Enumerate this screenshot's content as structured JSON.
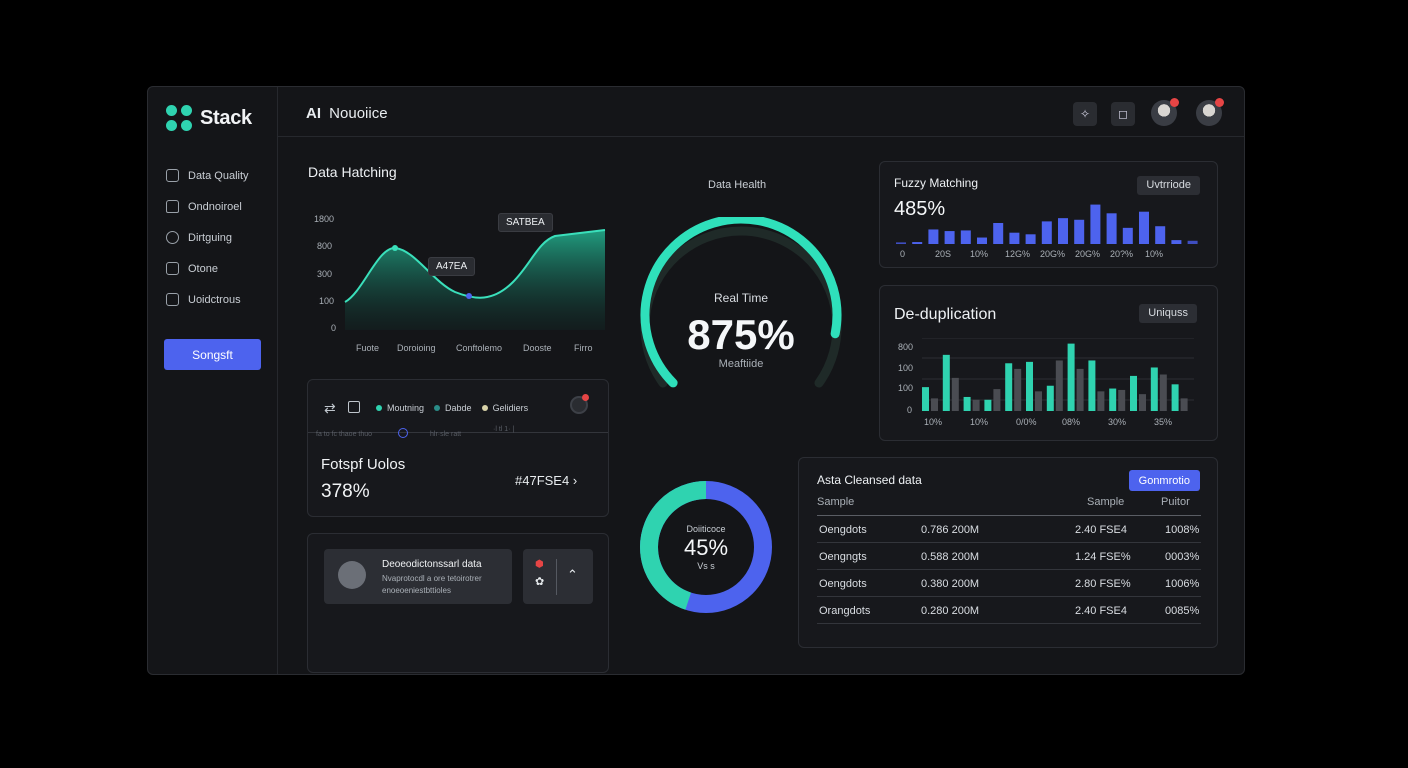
{
  "app": {
    "name": "Stack"
  },
  "header": {
    "title_strong": "AI",
    "title_rest": "Nouoiice"
  },
  "sidebar": {
    "items": [
      {
        "label": "Data Quality",
        "icon": "data-quality-icon"
      },
      {
        "label": "Ondnoiroel",
        "icon": "home-icon"
      },
      {
        "label": "Dirtguing",
        "icon": "chat-icon"
      },
      {
        "label": "Otone",
        "icon": "grid-icon"
      },
      {
        "label": "Uoidctrous",
        "icon": "folder-icon"
      }
    ],
    "cta_label": "Songsft"
  },
  "matching": {
    "title": "Data Hatching",
    "y_ticks": [
      "1800",
      "800",
      "300",
      "100",
      "0"
    ],
    "x_ticks": [
      "Fuote",
      "Doroioing",
      "Conftolemo",
      "Dooste",
      "Firro"
    ],
    "tooltip_a": "SATBEA",
    "tooltip_b": "A47EA",
    "chart_data": {
      "type": "area",
      "x": [
        "Fuote",
        "Doroioing",
        "Conftolemo",
        "Dooste",
        "Firro"
      ],
      "series": [
        {
          "values": [
            120,
            950,
            350,
            1400,
            1600
          ]
        }
      ]
    }
  },
  "legend_panel": {
    "legend": [
      "Moutning",
      "Dabde",
      "Gelidiers"
    ],
    "legend_colors": [
      "#2fd3b0",
      "#2a8c88",
      "#d8d2a8"
    ],
    "ghost_text": [
      "fa to fc thaoe thuo",
      "hlr·sle ratt",
      "·l tl 1· |"
    ],
    "stat_title": "Fotspf Uolos",
    "stat_value": "378%",
    "stat_code": "#47FSE4"
  },
  "notice": {
    "title": "Deoeodictonssarl data",
    "line1": "Nvaprotocdl a ore tetoirotrer",
    "line2": "enoeoeniestbttioles"
  },
  "health": {
    "label": "Data Health",
    "sub": "Real Time",
    "value": "875%",
    "caption": "Meaftiide",
    "fill": 0.875
  },
  "donut": {
    "caption": "Doiiticoce",
    "value": "45%",
    "sub": "Vs s",
    "fill": 0.45
  },
  "fuzzy": {
    "title": "Fuzzy Matching",
    "badge": "Uvtrriode",
    "value": "485%",
    "x_ticks": [
      "0",
      "20S",
      "10%",
      "12G%",
      "20G%",
      "20G%",
      "20?%",
      "10%"
    ],
    "chart_data": {
      "type": "bar",
      "values": [
        5,
        6,
        45,
        40,
        42,
        20,
        65,
        35,
        30,
        70,
        80,
        75,
        122,
        95,
        50,
        100,
        55,
        12,
        10
      ],
      "ylim": [
        0,
        130
      ]
    }
  },
  "dedup": {
    "title": "De-duplication",
    "badge": "Uniquss",
    "y_ticks": [
      "800",
      "100",
      "100",
      "0"
    ],
    "x_ticks": [
      "10%",
      "10%",
      "0/0%",
      "08%",
      "30%",
      "35%"
    ],
    "chart_data": {
      "type": "bar",
      "series": [
        {
          "values": [
            85,
            200,
            50,
            40,
            170,
            175,
            90,
            240,
            180,
            80,
            125,
            155,
            95
          ],
          "color": "#2fd3b0"
        },
        {
          "values": [
            45,
            118,
            40,
            78,
            150,
            70,
            180,
            150,
            70,
            75,
            60,
            130,
            45
          ],
          "color": "#4a4c52"
        }
      ],
      "ylim": [
        0,
        260
      ]
    }
  },
  "cleansed": {
    "title": "Asta Cleansed data",
    "action": "Gonmrotio",
    "headers": [
      "Sample",
      "Sample",
      "Puitor"
    ],
    "rows": [
      [
        "Oengdots",
        "0.786 200M",
        "2.40 FSE4",
        "1008%"
      ],
      [
        "Oengngts",
        "0.588 200M",
        "1.24 FSE%",
        "0003%"
      ],
      [
        "Oengdots",
        "0.380 200M",
        "2.80 FSE%",
        "1006%"
      ],
      [
        "Orangdots",
        "0.280 200M",
        "2.40 FSE4",
        "0085%"
      ]
    ]
  }
}
